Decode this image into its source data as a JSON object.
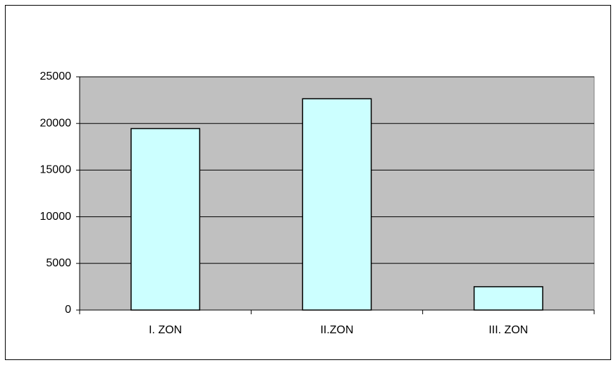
{
  "chart_data": {
    "type": "bar",
    "categories": [
      "I. ZON",
      "II.ZON",
      "III. ZON"
    ],
    "values": [
      19450,
      22650,
      2500
    ],
    "color": "#ccffff",
    "ylim": [
      0,
      25000
    ],
    "yticks": [
      0,
      5000,
      10000,
      15000,
      20000,
      25000
    ],
    "grid": true
  }
}
